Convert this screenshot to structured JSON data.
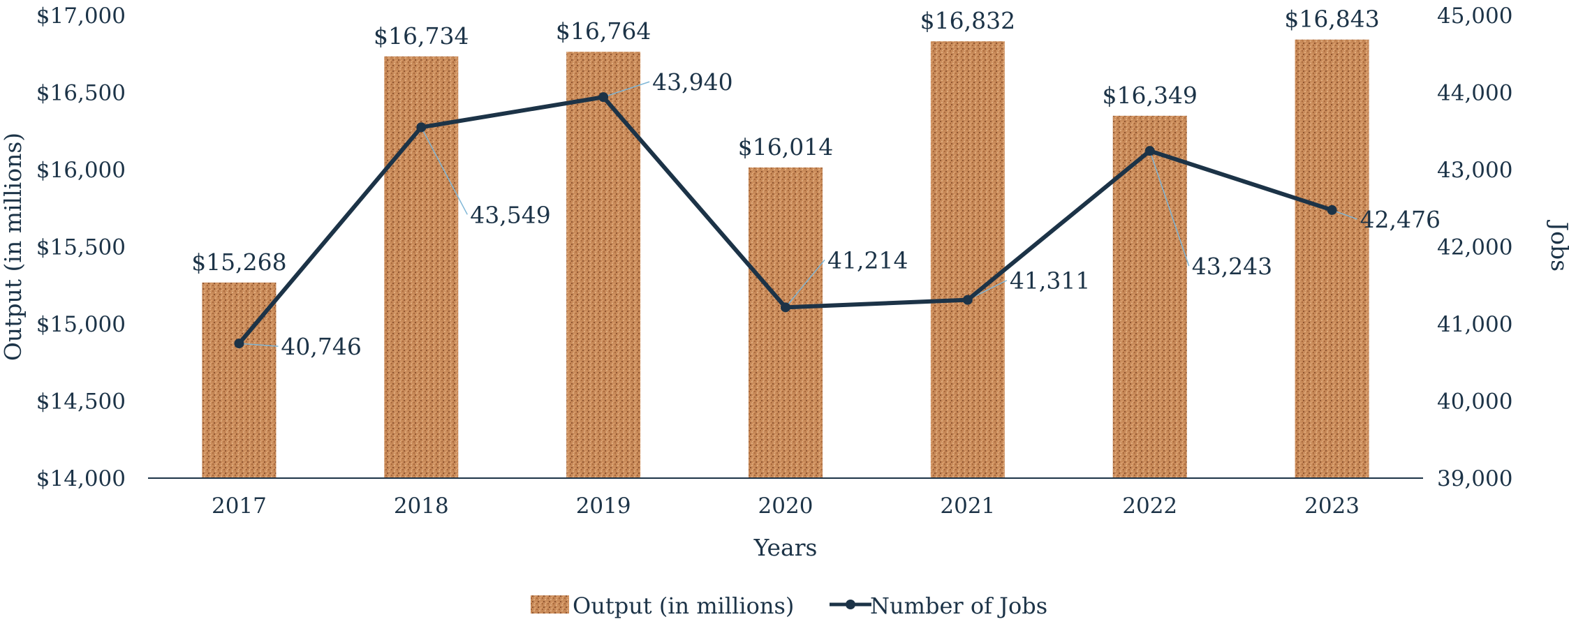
{
  "chart_data": {
    "type": "bar",
    "categories": [
      "2017",
      "2018",
      "2019",
      "2020",
      "2021",
      "2022",
      "2023"
    ],
    "series": [
      {
        "name": "Output (in millions)",
        "kind": "bar",
        "axis": "left",
        "values": [
          15268,
          16734,
          16764,
          16014,
          16832,
          16349,
          16843
        ],
        "labels": [
          "$15,268",
          "$16,734",
          "$16,764",
          "$16,014",
          "$16,832",
          "$16,349",
          "$16,843"
        ],
        "color": "#c98b5a"
      },
      {
        "name": "Number of Jobs",
        "kind": "line",
        "axis": "right",
        "values": [
          40746,
          43549,
          43940,
          41214,
          41311,
          43243,
          42476
        ],
        "labels": [
          "40,746",
          "43,549",
          "43,940",
          "41,214",
          "41,311",
          "43,243",
          "42,476"
        ],
        "color": "#1c3347"
      }
    ],
    "xlabel": "Years",
    "ylabel": "Output (in millions)",
    "y2label": "Jobs",
    "ylim": [
      14000,
      17000
    ],
    "y2lim": [
      39000,
      45000
    ],
    "yticks": [
      "$17,000",
      "$16,500",
      "$16,000",
      "$15,500",
      "$15,000",
      "$14,500",
      "$14,000"
    ],
    "y2ticks": [
      "45,000",
      "44,000",
      "43,000",
      "42,000",
      "41,000",
      "40,000",
      "39,000"
    ],
    "legend": "bottom",
    "grid": false,
    "leader_color": "#7fb6d6"
  }
}
